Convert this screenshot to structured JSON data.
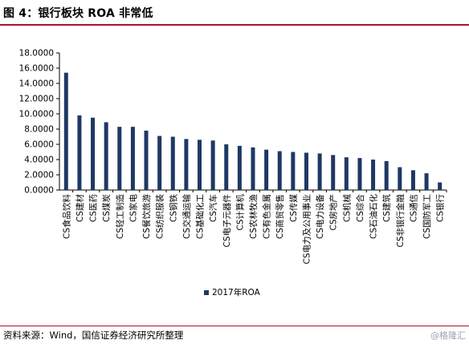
{
  "header": {
    "title": "图 4：银行板块 ROA 非常低"
  },
  "footer": {
    "source": "资料来源：Wind，国信证券经济研究所整理",
    "watermark": "@格隆汇"
  },
  "colors": {
    "bar": "#1f3864",
    "accent_rule": "#b01030"
  },
  "chart_data": {
    "type": "bar",
    "title": "",
    "xlabel": "",
    "ylabel": "",
    "ylim": [
      0,
      18
    ],
    "yticks": [
      "0.0000",
      "2.0000",
      "4.0000",
      "6.0000",
      "8.0000",
      "10.0000",
      "12.0000",
      "14.0000",
      "16.0000",
      "18.0000"
    ],
    "legend_position": "bottom",
    "grid": false,
    "categories": [
      "CS食品饮料",
      "CS建材",
      "CS医药",
      "CS煤炭",
      "CS轻工制造",
      "CS家电",
      "CS餐饮旅游",
      "CS纺织服装",
      "CS钢铁",
      "CS交通运输",
      "CS基础化工",
      "CS汽车",
      "CS电子元器件",
      "CS计算机",
      "CS农林牧渔",
      "CS有色金属",
      "CS商贸零售",
      "CS传媒",
      "CS电力及公用事业",
      "CS电力设备",
      "CS房地产",
      "CS机械",
      "CS综合",
      "CS石油石化",
      "CS建筑",
      "CS非银行金融",
      "CS通信",
      "CS国防军工",
      "CS银行"
    ],
    "series": [
      {
        "name": "2017年ROA",
        "values": [
          15.4,
          9.8,
          9.5,
          8.9,
          8.3,
          8.3,
          7.8,
          7.1,
          7.0,
          6.7,
          6.6,
          6.5,
          6.0,
          5.8,
          5.6,
          5.3,
          5.1,
          5.0,
          4.9,
          4.8,
          4.6,
          4.3,
          4.2,
          4.0,
          3.8,
          3.0,
          2.6,
          2.2,
          1.0
        ]
      }
    ]
  }
}
